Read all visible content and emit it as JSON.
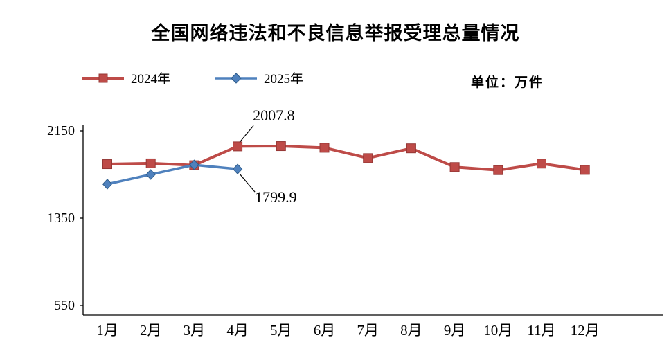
{
  "title": "全国网络违法和不良信息举报受理总量情况",
  "unit_label": "单位：万件",
  "legend": [
    {
      "label": "2024年",
      "color": "#be4b48",
      "edge_color": "#953735",
      "marker": "square"
    },
    {
      "label": "2025年",
      "color": "#4f81bd",
      "edge_color": "#2e5c8a",
      "marker": "diamond"
    }
  ],
  "chart_data": {
    "type": "line",
    "title": "全国网络违法和不良信息举报受理总量情况",
    "unit": "万件",
    "categories": [
      "1月",
      "2月",
      "3月",
      "4月",
      "5月",
      "6月",
      "7月",
      "8月",
      "9月",
      "10月",
      "11月",
      "12月"
    ],
    "series": [
      {
        "name": "2024年",
        "color": "#be4b48",
        "edge_color": "#953735",
        "marker": "square",
        "values": [
          1845,
          1852,
          1835,
          2007.8,
          2010,
          1995,
          1900,
          1990,
          1818,
          1790,
          1850,
          1792
        ]
      },
      {
        "name": "2025年",
        "color": "#4f81bd",
        "edge_color": "#2e5c8a",
        "marker": "diamond",
        "values": [
          1662,
          1750,
          1838,
          1799.9,
          null,
          null,
          null,
          null,
          null,
          null,
          null,
          null
        ]
      }
    ],
    "yticks": [
      2150,
      1350,
      550
    ],
    "ylim": [
      550,
      2200
    ],
    "grid": false,
    "legend_position": "top-left",
    "annotations": [
      {
        "text": "2007.8",
        "series_index": 0,
        "point_index": 3,
        "placement": "above"
      },
      {
        "text": "1799.9",
        "series_index": 1,
        "point_index": 3,
        "placement": "below"
      }
    ]
  }
}
